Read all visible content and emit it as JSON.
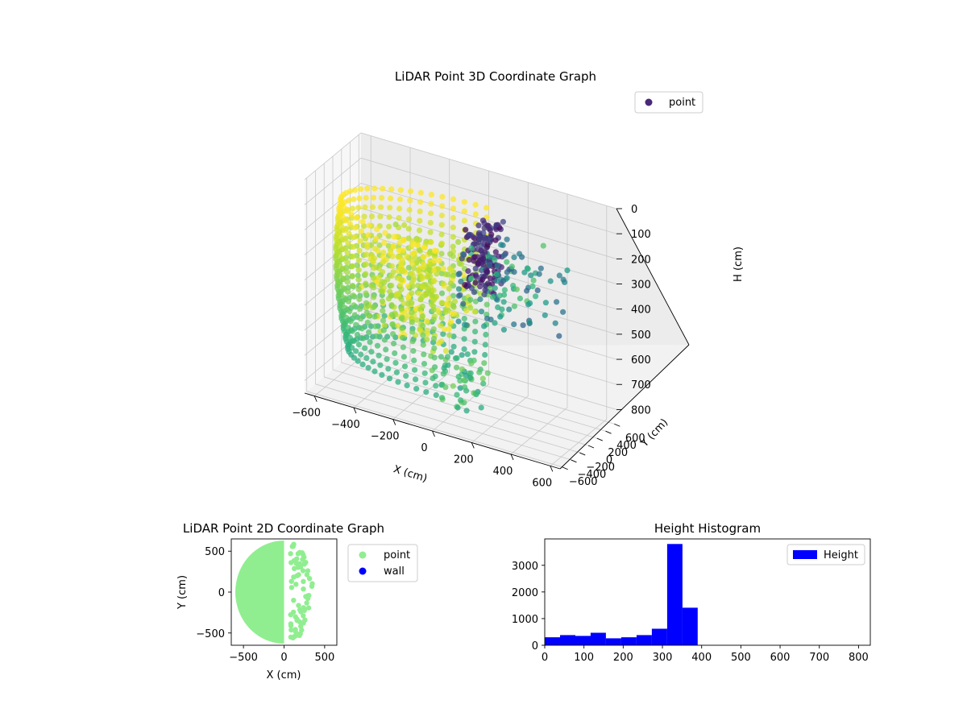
{
  "chart_data": [
    {
      "type": "scatter",
      "projection": "3d",
      "title": "LiDAR Point 3D Coordinate Graph",
      "xlabel": "X (cm)",
      "ylabel": "Y (cm)",
      "zlabel": "H (cm)",
      "xlim": [
        -650,
        650
      ],
      "ylim": [
        -650,
        650
      ],
      "zlim": [
        0,
        850
      ],
      "z_inverted": true,
      "xticks": [
        "−600",
        "−400",
        "−200",
        "0",
        "200",
        "400",
        "600"
      ],
      "yticks": [
        "−600",
        "−400",
        "−200",
        "0",
        "200",
        "400",
        "600"
      ],
      "zticks": [
        "0",
        "100",
        "200",
        "300",
        "400",
        "500",
        "600",
        "700",
        "800"
      ],
      "grid": true,
      "colormap": "viridis",
      "legend": {
        "placement": "upper-right",
        "entries": [
          {
            "label": "point",
            "color": "#482878"
          }
        ]
      },
      "shape": {
        "radius_cm": 620,
        "wall_height_cm": [
          320,
          390
        ],
        "arc_start_deg": 90,
        "arc_end_deg": 270
      }
    },
    {
      "type": "scatter",
      "title": "LiDAR Point 2D Coordinate Graph",
      "xlabel": "X (cm)",
      "ylabel": "Y (cm)",
      "xlim": [
        -650,
        650
      ],
      "ylim": [
        -650,
        650
      ],
      "xticks": [
        -500,
        0,
        500
      ],
      "yticks": [
        -500,
        0,
        500
      ],
      "xtick_labels": [
        "−500",
        "0",
        "500"
      ],
      "ytick_labels": [
        "−500",
        "0",
        "500"
      ],
      "legend": {
        "placement": "outside-right",
        "entries": [
          {
            "label": "point",
            "color": "#90ee90"
          },
          {
            "label": "wall",
            "color": "#0000ff"
          }
        ]
      }
    },
    {
      "type": "bar",
      "subtype": "histogram",
      "title": "Height Histogram",
      "xlabel": "",
      "ylabel": "",
      "xlim": [
        0,
        830
      ],
      "ylim": [
        0,
        3990
      ],
      "xticks": [
        0,
        100,
        200,
        300,
        400,
        500,
        600,
        700,
        800
      ],
      "yticks": [
        0,
        1000,
        2000,
        3000
      ],
      "bin_width": 39,
      "bin_edges": [
        0,
        39,
        78,
        117,
        156,
        195,
        234,
        273,
        312,
        351,
        390
      ],
      "values": [
        300,
        380,
        350,
        470,
        260,
        300,
        380,
        620,
        3800,
        1410
      ],
      "color": "#0000ff",
      "legend": {
        "placement": "upper-right",
        "entries": [
          {
            "label": "Height",
            "color": "#0000ff"
          }
        ]
      }
    }
  ]
}
